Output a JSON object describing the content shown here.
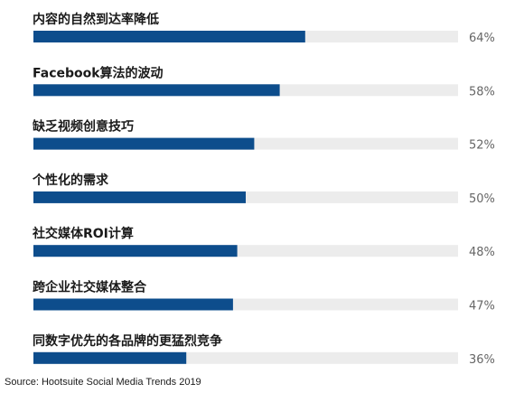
{
  "chart_data": {
    "type": "bar",
    "orientation": "horizontal",
    "categories": [
      "内容的自然到达率降低",
      "Facebook算法的波动",
      "缺乏视频创意技巧",
      "个性化的需求",
      "社交媒体ROI计算",
      "跨企业社交媒体整合",
      "同数字优先的各品牌的更猛烈竞争"
    ],
    "values": [
      64,
      58,
      52,
      50,
      48,
      47,
      36
    ],
    "value_labels": [
      "64%",
      "58%",
      "52%",
      "50%",
      "48%",
      "47%",
      "36%"
    ],
    "xlim": [
      0,
      100
    ],
    "grid": false,
    "legend": "none",
    "colors": {
      "bar": "#0d4d8c",
      "track": "#ececec",
      "label": "#1a1a1a",
      "value": "#666666"
    }
  },
  "source": "Source: Hootsuite Social Media Trends 2019"
}
